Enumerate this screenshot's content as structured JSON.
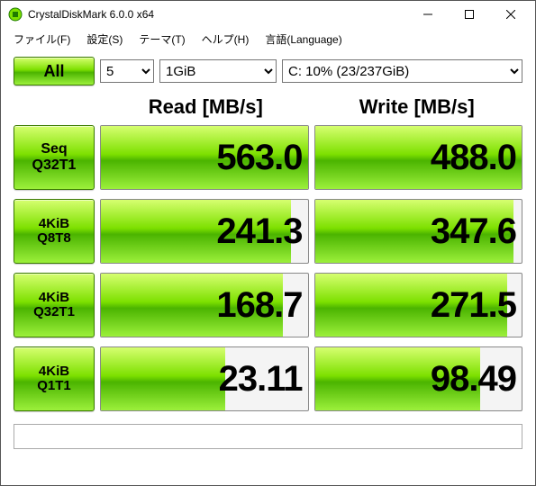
{
  "window": {
    "title": "CrystalDiskMark 6.0.0 x64",
    "icon_colors": [
      "#4bb400",
      "#1e7a00"
    ]
  },
  "menu": {
    "file": "ファイル(F)",
    "settings": "設定(S)",
    "theme": "テーマ(T)",
    "help": "ヘルプ(H)",
    "language": "言語(Language)"
  },
  "controls": {
    "all_label": "All",
    "count_value": "5",
    "size_value": "1GiB",
    "drive_value": "C: 10% (23/237GiB)"
  },
  "columns": {
    "read": "Read [MB/s]",
    "write": "Write [MB/s]"
  },
  "tests": [
    {
      "label1": "Seq",
      "label2": "Q32T1",
      "read": "563.0",
      "write": "488.0",
      "read_fill_pct": 100,
      "write_fill_pct": 100
    },
    {
      "label1": "4KiB",
      "label2": "Q8T8",
      "read": "241.3",
      "write": "347.6",
      "read_fill_pct": 92,
      "write_fill_pct": 96
    },
    {
      "label1": "4KiB",
      "label2": "Q32T1",
      "read": "168.7",
      "write": "271.5",
      "read_fill_pct": 88,
      "write_fill_pct": 93
    },
    {
      "label1": "4KiB",
      "label2": "Q1T1",
      "read": "23.11",
      "write": "98.49",
      "read_fill_pct": 60,
      "write_fill_pct": 80
    }
  ],
  "colors": {
    "grad_top": "#d6ff70",
    "grad_mid1": "#7de000",
    "grad_mid2": "#4bb400",
    "grad_bot": "#9cf03b",
    "border": "#3a7a00"
  }
}
